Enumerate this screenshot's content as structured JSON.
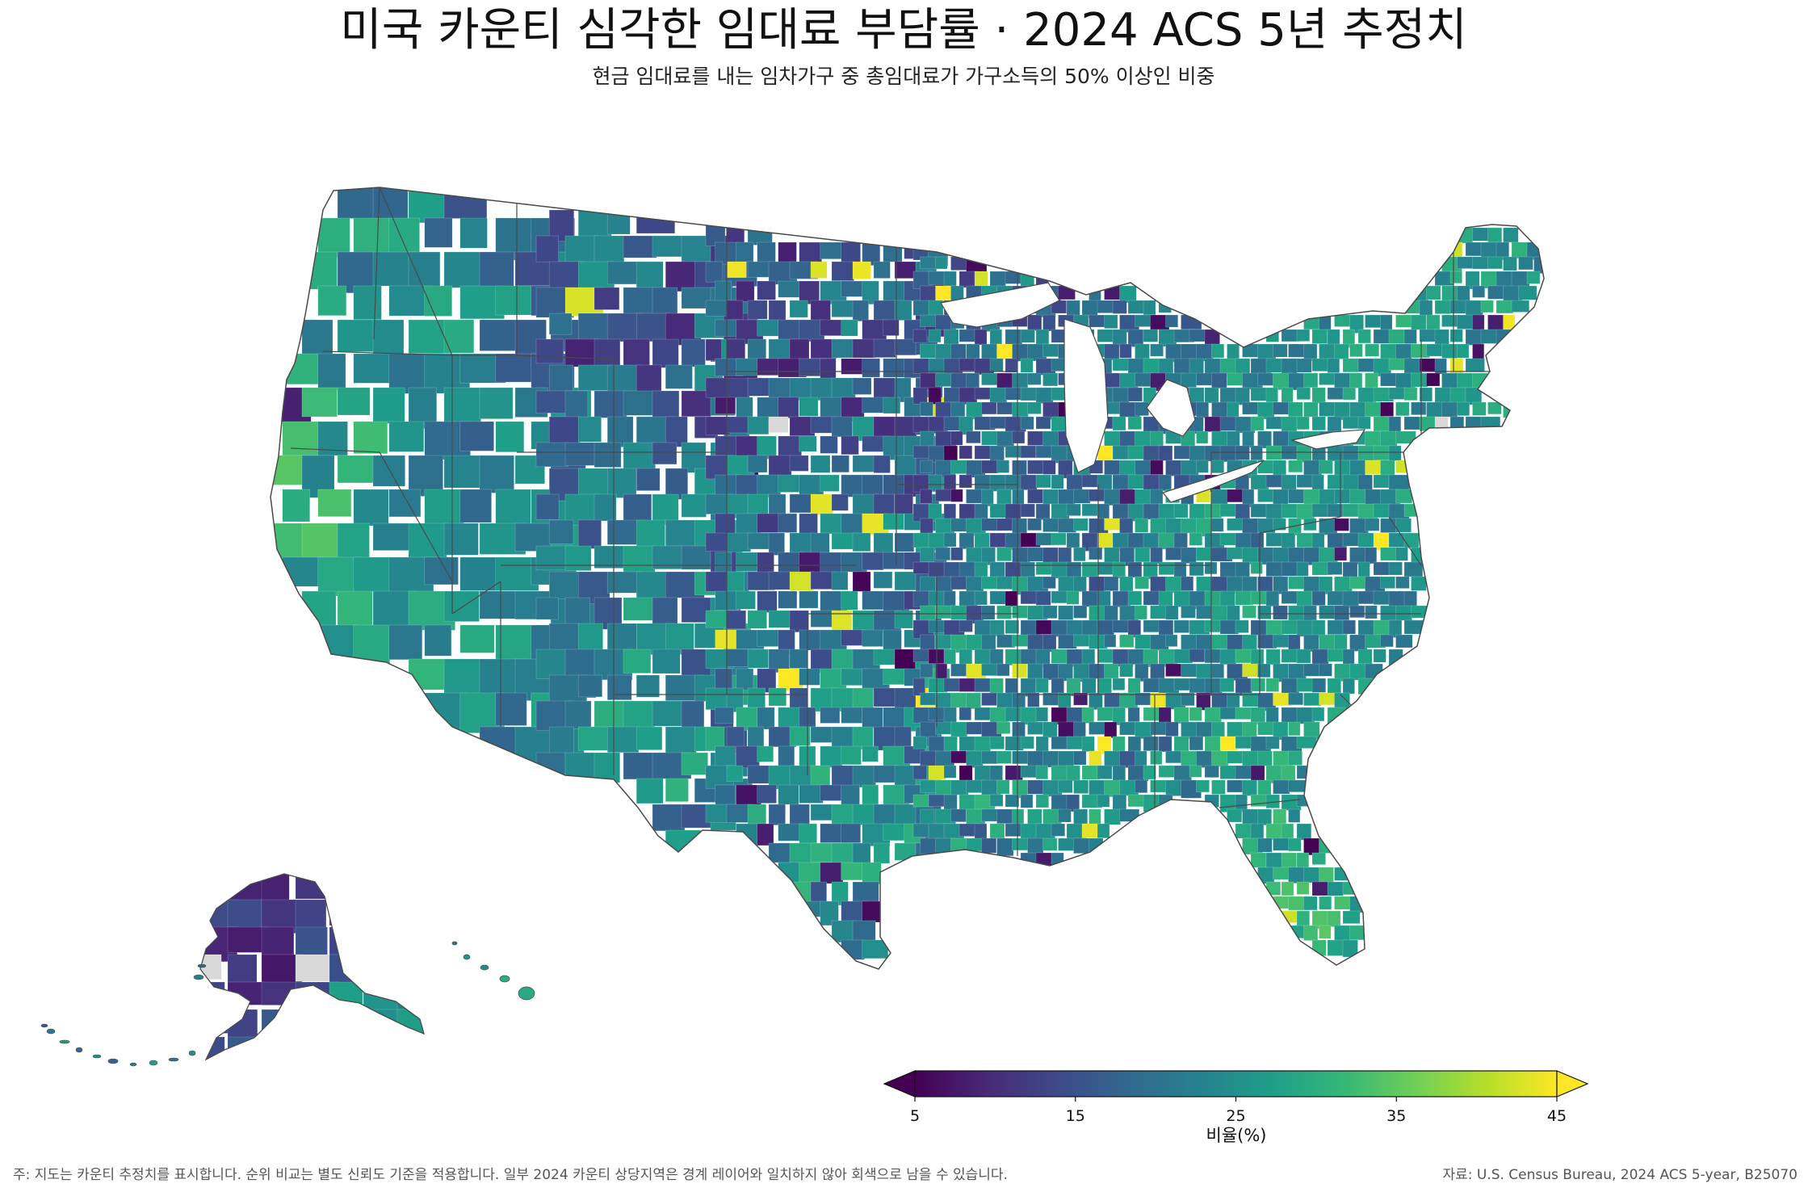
{
  "title": "미국 카운티 심각한 임대료 부담률 · 2024 ACS 5년 추정치",
  "subtitle": "현금 임대료를 내는 임차가구 중 총임대료가 가구소득의 50% 이상인 비중",
  "colorbar": {
    "label": "비율(%)",
    "min": 5,
    "max": 45,
    "ticks": [
      {
        "value": 5,
        "label": "5"
      },
      {
        "value": 15,
        "label": "15"
      },
      {
        "value": 25,
        "label": "25"
      },
      {
        "value": 35,
        "label": "35"
      },
      {
        "value": 45,
        "label": "45"
      }
    ],
    "extend": "both",
    "colormap": "viridis",
    "colors": [
      "#440154",
      "#482878",
      "#3e4989",
      "#31688e",
      "#26828e",
      "#1f9e89",
      "#35b779",
      "#6ece58",
      "#b5de2b",
      "#fde725"
    ]
  },
  "missing_color": "#d9d9d9",
  "border_color": "#4a4a4a",
  "footer": {
    "note": "주: 지도는 카운티 추정치를 표시합니다. 순위 비교는 별도 신뢰도 기준을 적용합니다. 일부 2024 카운티 상당지역은 경계 레이어와 일치하지 않아 회색으로 남을 수 있습니다.",
    "source": "자료: U.S. Census Bureau, 2024 ACS 5-year, B25070"
  }
}
